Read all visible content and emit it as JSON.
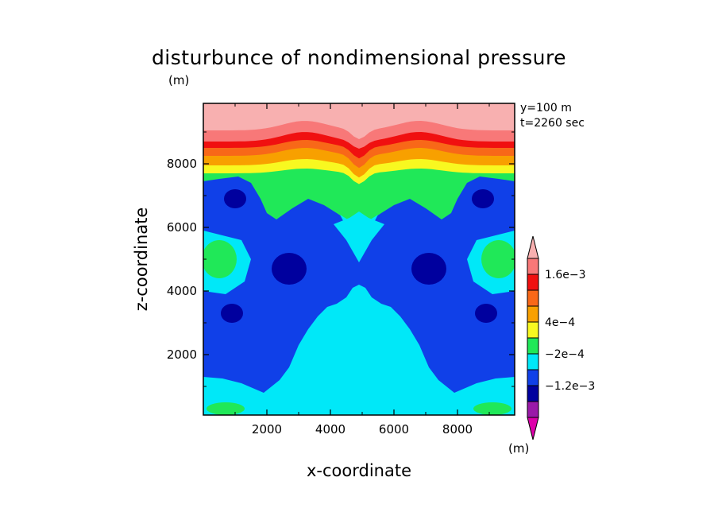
{
  "chart_data": {
    "type": "heatmap",
    "title": "disturbunce of nondimensional pressure",
    "title_unit": "(m)",
    "xlabel": "x-coordinate",
    "ylabel": "z-coordinate",
    "annotations": [
      "y=100 m",
      "t=2260 sec"
    ],
    "xlim": [
      0,
      9800
    ],
    "ylim": [
      100,
      9900
    ],
    "xticks": [
      2000,
      4000,
      6000,
      8000
    ],
    "xtick_labels": [
      "2000",
      "4000",
      "6000",
      "8000"
    ],
    "yticks": [
      2000,
      4000,
      6000,
      8000
    ],
    "ytick_labels": [
      "2000",
      "4000",
      "6000",
      "8000"
    ],
    "colorbar": {
      "levels": [
        -0.0018,
        -0.0014,
        -0.001,
        -0.0006,
        -0.0002,
        0.0002,
        0.0006,
        0.001,
        0.0014,
        0.0018
      ],
      "labeled_levels": [
        {
          "value": 0.0016,
          "label": "1.6e−3"
        },
        {
          "value": 0.0004,
          "label": "4e−4"
        },
        {
          "value": -0.0002,
          "label": "−2e−4"
        },
        {
          "value": -0.0012,
          "label": "−1.2e−3"
        }
      ],
      "colors": [
        "#dd00aa",
        "#9a1aa8",
        "#00009e",
        "#1040e8",
        "#00e8f8",
        "#20e858",
        "#f8f820",
        "#f8a000",
        "#f86818",
        "#f01010",
        "#f87878",
        "#f8b0b0"
      ],
      "unit": "(m)"
    },
    "field_bands": [
      {
        "z_range": [
          9300,
          9900
        ],
        "value": 0.0018,
        "color": "#f8b0b0"
      },
      {
        "z_range": [
          8800,
          9300
        ],
        "value": 0.0016,
        "color": "#f87878"
      },
      {
        "z_range": [
          8500,
          8800
        ],
        "value": 0.0014,
        "color": "#f01010"
      },
      {
        "z_range": [
          8200,
          8500
        ],
        "value": 0.001,
        "color": "#f86818"
      },
      {
        "z_range": [
          7900,
          8200
        ],
        "value": 0.0006,
        "color": "#f8a000"
      },
      {
        "z_range": [
          7600,
          7900
        ],
        "value": 0.0003,
        "color": "#f8f820"
      },
      {
        "z_range": [
          7300,
          7600
        ],
        "value": 0.0,
        "color": "#20e858"
      },
      {
        "z_range": [
          100,
          7300
        ],
        "value": -0.0008,
        "color": "#1040e8"
      }
    ],
    "features": [
      {
        "kind": "low",
        "center": [
          1000,
          6900
        ],
        "value": -0.0014,
        "color": "#00009e"
      },
      {
        "kind": "low",
        "center": [
          8800,
          6900
        ],
        "value": -0.0014,
        "color": "#00009e"
      },
      {
        "kind": "low",
        "center": [
          2700,
          4700
        ],
        "value": -0.0014,
        "color": "#00009e"
      },
      {
        "kind": "low",
        "center": [
          7100,
          4700
        ],
        "value": -0.0014,
        "color": "#00009e"
      },
      {
        "kind": "low",
        "center": [
          900,
          3300
        ],
        "value": -0.0014,
        "color": "#00009e"
      },
      {
        "kind": "low",
        "center": [
          8900,
          3300
        ],
        "value": -0.0014,
        "color": "#00009e"
      },
      {
        "kind": "high",
        "center": [
          4900,
          2000
        ],
        "value": -0.0002,
        "color": "#00e8f8"
      },
      {
        "kind": "high",
        "center": [
          500,
          5000
        ],
        "value": 0.0,
        "color": "#20e858"
      },
      {
        "kind": "high",
        "center": [
          9300,
          5000
        ],
        "value": 0.0,
        "color": "#20e858"
      },
      {
        "kind": "high",
        "center": [
          700,
          300
        ],
        "value": 0.0,
        "color": "#20e858"
      },
      {
        "kind": "high",
        "center": [
          9100,
          300
        ],
        "value": 0.0,
        "color": "#20e858"
      }
    ]
  }
}
